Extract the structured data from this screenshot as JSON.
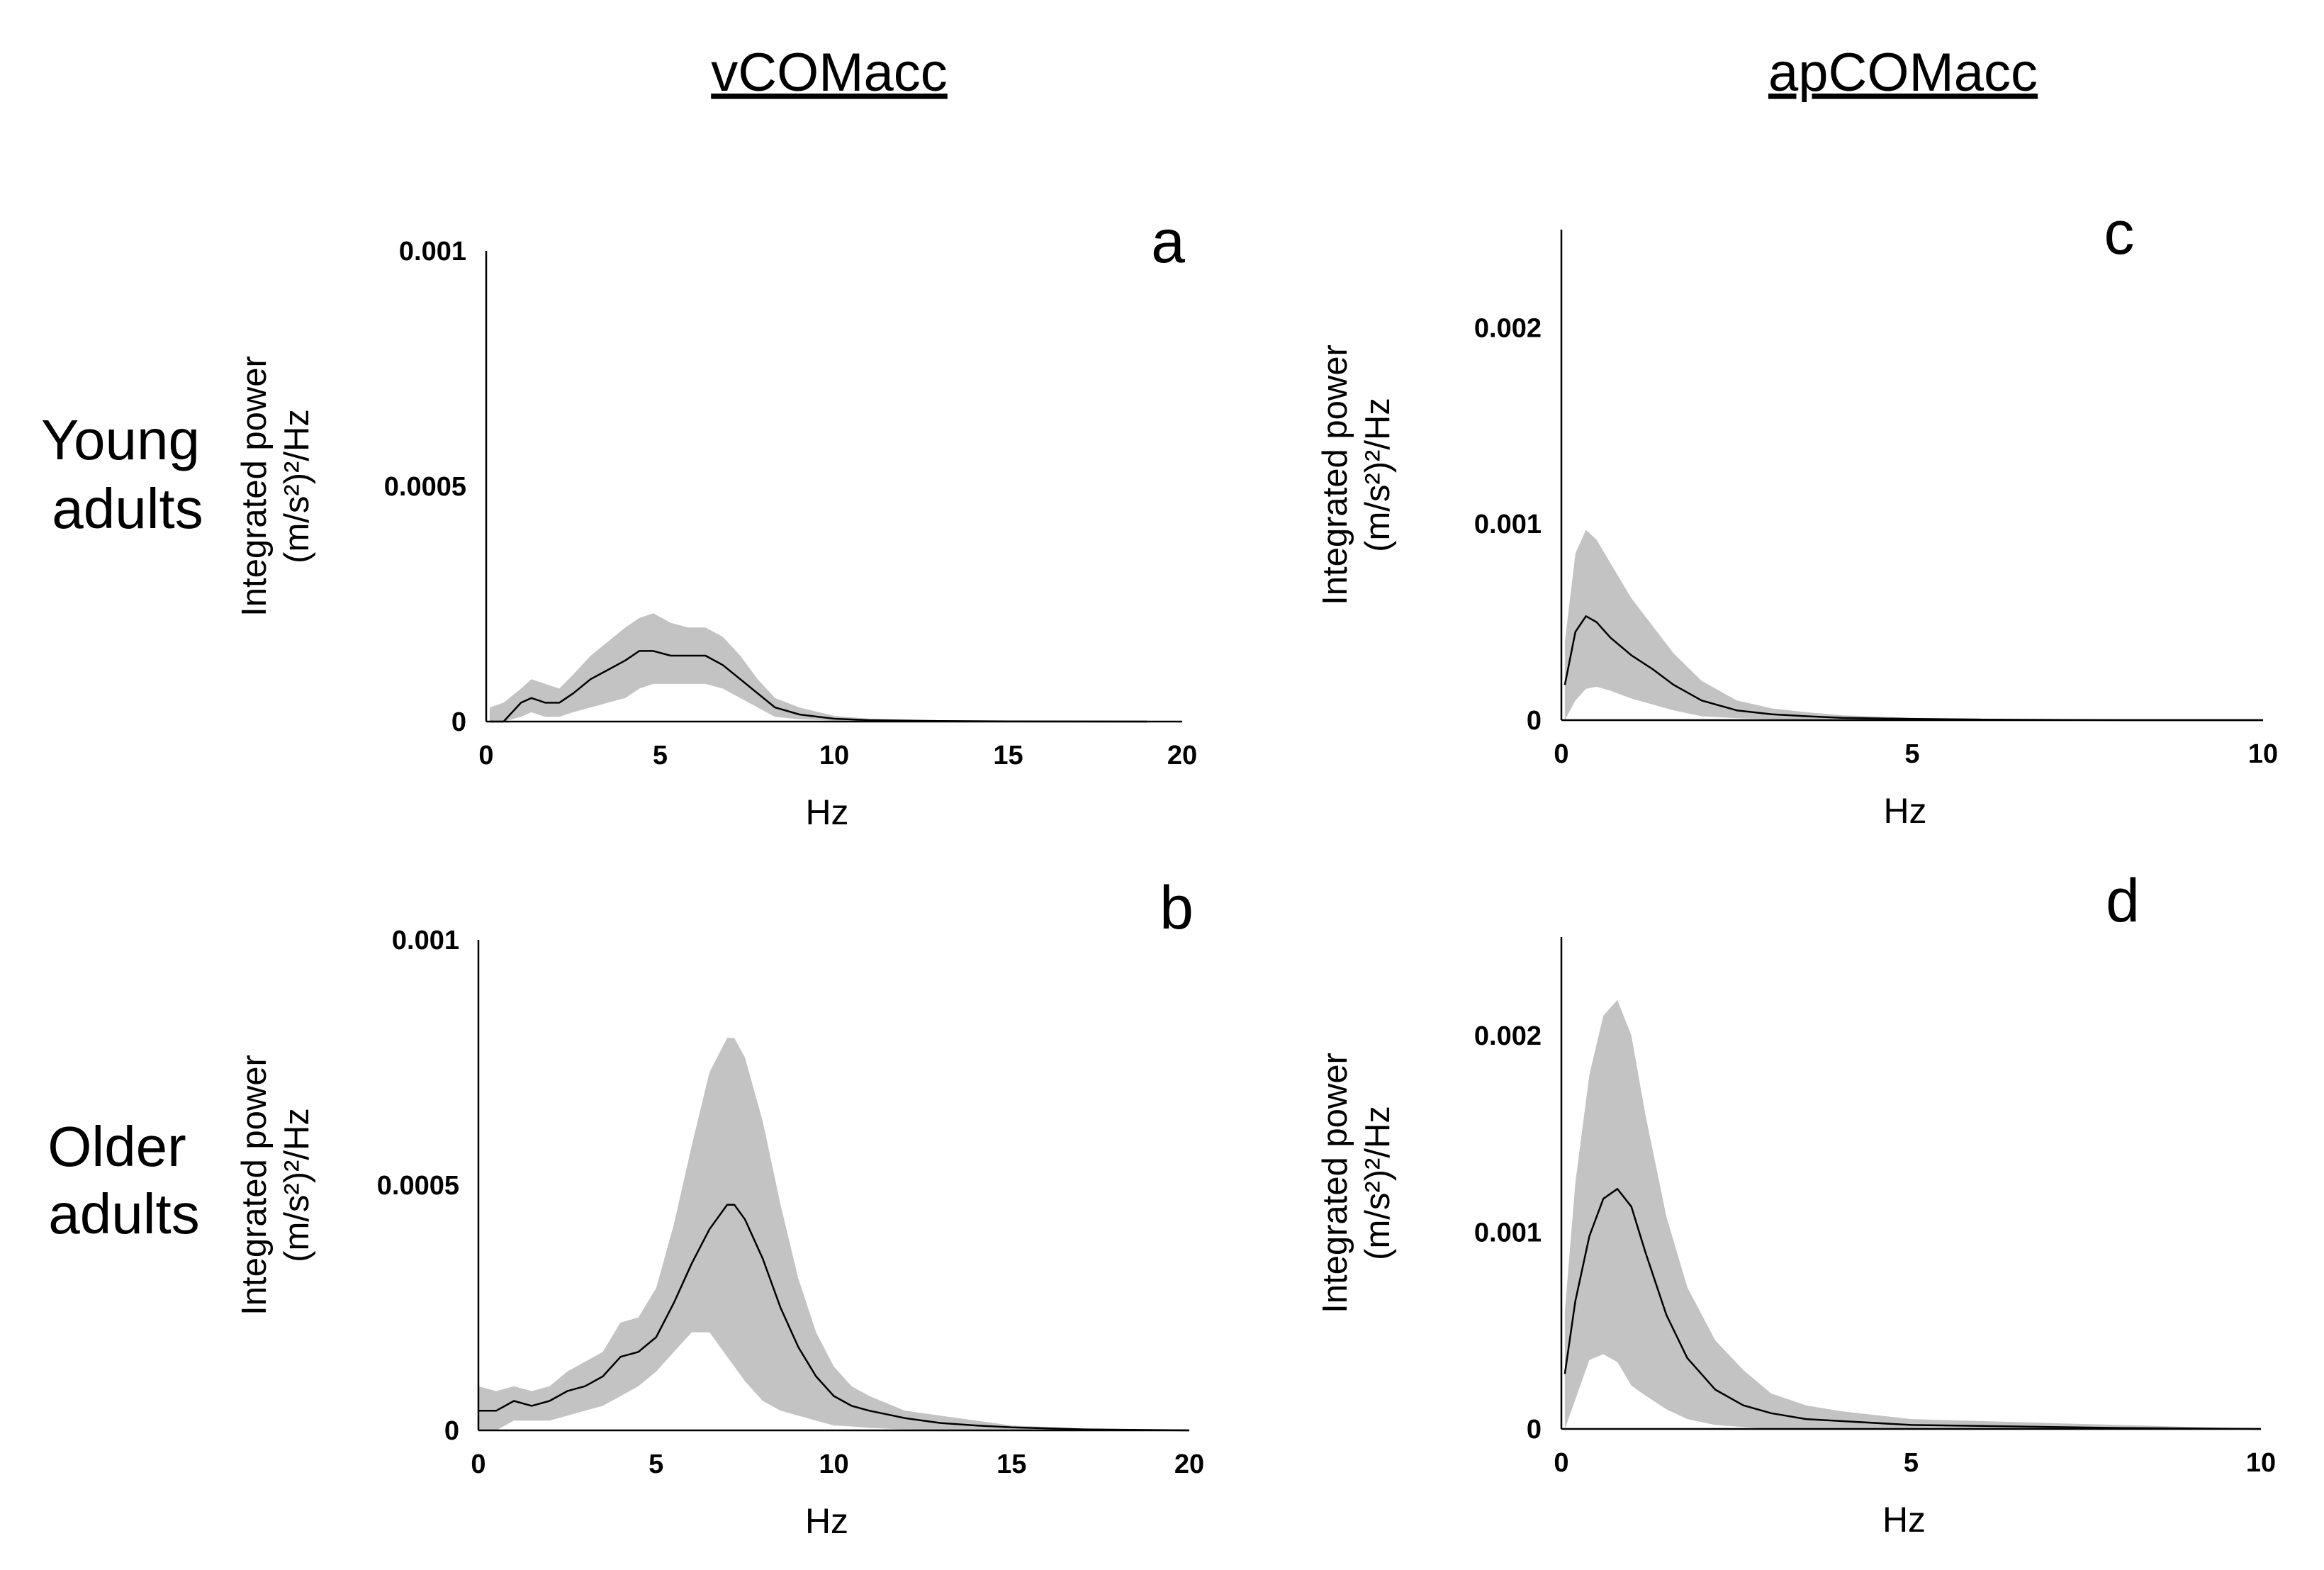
{
  "figure": {
    "column_titles": [
      "vCOMacc",
      "apCOMacc"
    ],
    "row_labels": [
      {
        "line1": "Young",
        "line2": "adults"
      },
      {
        "line1": "Older",
        "line2": "adults"
      }
    ]
  },
  "chart_data": [
    {
      "panel": "a",
      "type": "area",
      "title": "",
      "column_title": "vCOMacc",
      "group": "Young adults",
      "xlabel": "Hz",
      "ylabel_line1": "Integrated power",
      "ylabel_line2": "(m/s²)²/Hz",
      "xlim": [
        0,
        20
      ],
      "ylim": [
        0,
        0.001
      ],
      "xticks": [
        "0",
        "5",
        "10",
        "15",
        "20"
      ],
      "xtick_values": [
        0,
        5,
        10,
        15,
        20
      ],
      "yticks": [
        "0",
        "0.0005",
        "0.001"
      ],
      "ytick_values": [
        0,
        0.0005,
        0.001
      ],
      "x": [
        0.1,
        0.5,
        1.0,
        1.3,
        1.7,
        2.1,
        2.5,
        3.0,
        3.5,
        4.0,
        4.4,
        4.8,
        5.3,
        5.8,
        6.3,
        6.8,
        7.3,
        7.8,
        8.3,
        9.0,
        10.0,
        11.0,
        13.0,
        15.0,
        17.0,
        19.0
      ],
      "mean": [
        0.0,
        0.0,
        4e-05,
        5e-05,
        4e-05,
        4e-05,
        6e-05,
        9e-05,
        0.00011,
        0.00013,
        0.00015,
        0.00015,
        0.00014,
        0.00014,
        0.00014,
        0.00012,
        9e-05,
        6e-05,
        3e-05,
        1.5e-05,
        6e-06,
        3e-06,
        1e-06,
        5e-07,
        2e-07,
        0.0
      ],
      "upper": [
        3e-05,
        4e-05,
        7e-05,
        9e-05,
        8e-05,
        7e-05,
        0.0001,
        0.00014,
        0.00017,
        0.0002,
        0.00022,
        0.00023,
        0.00021,
        0.0002,
        0.0002,
        0.00018,
        0.00014,
        9e-05,
        5e-05,
        3e-05,
        1.2e-05,
        6e-06,
        3e-06,
        1.5e-06,
        8e-07,
        5e-07
      ],
      "lower": [
        0.0,
        0.0,
        1e-05,
        2e-05,
        1e-05,
        1e-05,
        2e-05,
        3e-05,
        4e-05,
        5e-05,
        7e-05,
        8e-05,
        8e-05,
        8e-05,
        8e-05,
        7e-05,
        5e-05,
        3e-05,
        1e-05,
        5e-06,
        2e-06,
        1e-06,
        0.0,
        0.0,
        0.0,
        0.0
      ]
    },
    {
      "panel": "b",
      "type": "area",
      "title": "",
      "column_title": "vCOMacc",
      "group": "Older adults",
      "xlabel": "Hz",
      "ylabel_line1": "Integrated power",
      "ylabel_line2": "(m/s²)²/Hz",
      "xlim": [
        0,
        20
      ],
      "ylim": [
        0,
        0.001
      ],
      "xticks": [
        "0",
        "5",
        "10",
        "15",
        "20"
      ],
      "xtick_values": [
        0,
        5,
        10,
        15,
        20
      ],
      "yticks": [
        "0",
        "0.0005",
        "0.001"
      ],
      "ytick_values": [
        0,
        0.0005,
        0.001
      ],
      "x": [
        0.0,
        0.5,
        1.0,
        1.5,
        2.0,
        2.5,
        3.0,
        3.5,
        4.0,
        4.5,
        5.0,
        5.5,
        6.0,
        6.5,
        7.0,
        7.2,
        7.5,
        8.0,
        8.5,
        9.0,
        9.5,
        10.0,
        10.5,
        11.0,
        12.0,
        13.0,
        14.0,
        15.0,
        17.0,
        20.0
      ],
      "mean": [
        4e-05,
        4e-05,
        6e-05,
        5e-05,
        6e-05,
        8e-05,
        9e-05,
        0.00011,
        0.00015,
        0.00016,
        0.00019,
        0.00026,
        0.00034,
        0.00041,
        0.00046,
        0.00046,
        0.00043,
        0.00035,
        0.00025,
        0.00017,
        0.00011,
        7e-05,
        5e-05,
        4e-05,
        2.5e-05,
        1.5e-05,
        1e-05,
        6e-06,
        2e-06,
        0.0
      ],
      "upper": [
        9e-05,
        8e-05,
        9e-05,
        8e-05,
        9e-05,
        0.00012,
        0.00014,
        0.00016,
        0.00022,
        0.00023,
        0.00029,
        0.00042,
        0.00058,
        0.00073,
        0.0008,
        0.0008,
        0.00076,
        0.00063,
        0.00046,
        0.00031,
        0.0002,
        0.00013,
        9e-05,
        7e-05,
        4e-05,
        3e-05,
        2e-05,
        1e-05,
        4e-06,
        0.0
      ],
      "lower": [
        0.0,
        0.0,
        2e-05,
        2e-05,
        2e-05,
        3e-05,
        4e-05,
        5e-05,
        7e-05,
        9e-05,
        0.00012,
        0.00016,
        0.0002,
        0.0002,
        0.00015,
        0.00013,
        0.0001,
        6e-05,
        4e-05,
        3e-05,
        2e-05,
        1e-05,
        8e-06,
        5e-06,
        2e-06,
        1e-06,
        0.0,
        0.0,
        0.0,
        0.0
      ]
    },
    {
      "panel": "c",
      "type": "area",
      "title": "",
      "column_title": "apCOMacc",
      "group": "Young adults",
      "xlabel": "Hz",
      "ylabel_line1": "Integrated power",
      "ylabel_line2": "(m/s²)²/Hz",
      "xlim": [
        0,
        10
      ],
      "ylim": [
        0,
        0.0025
      ],
      "xticks": [
        "0",
        "5",
        "10"
      ],
      "xtick_values": [
        0,
        5,
        10
      ],
      "yticks": [
        "0",
        "0.001",
        "0.002"
      ],
      "ytick_values": [
        0,
        0.001,
        0.002
      ],
      "x": [
        0.05,
        0.2,
        0.35,
        0.5,
        0.7,
        1.0,
        1.3,
        1.6,
        2.0,
        2.5,
        3.0,
        3.5,
        4.0,
        5.0,
        6.0,
        8.0,
        10.0
      ],
      "mean": [
        0.00018,
        0.00045,
        0.00053,
        0.0005,
        0.00042,
        0.00033,
        0.00026,
        0.00018,
        0.0001,
        5e-05,
        3e-05,
        2e-05,
        1.2e-05,
        6e-06,
        3e-06,
        0.0,
        0.0
      ],
      "upper": [
        0.0004,
        0.00085,
        0.00097,
        0.00092,
        0.0008,
        0.00062,
        0.00048,
        0.00034,
        0.0002,
        0.0001,
        6e-05,
        4e-05,
        2.5e-05,
        1.2e-05,
        6e-06,
        2e-06,
        0.0
      ],
      "lower": [
        0.0,
        0.0001,
        0.00016,
        0.00017,
        0.00015,
        0.00011,
        8e-05,
        5e-05,
        2e-05,
        1e-05,
        5e-06,
        0.0,
        0.0,
        0.0,
        0.0,
        0.0,
        0.0
      ]
    },
    {
      "panel": "d",
      "type": "area",
      "title": "",
      "column_title": "apCOMacc",
      "group": "Older adults",
      "xlabel": "Hz",
      "ylabel_line1": "Integrated power",
      "ylabel_line2": "(m/s²)²/Hz",
      "xlim": [
        0,
        10
      ],
      "ylim": [
        0,
        0.0025
      ],
      "xticks": [
        "0",
        "5",
        "10"
      ],
      "xtick_values": [
        0,
        5,
        10
      ],
      "yticks": [
        "0",
        "0.001",
        "0.002"
      ],
      "ytick_values": [
        0,
        0.001,
        0.002
      ],
      "x": [
        0.05,
        0.2,
        0.4,
        0.6,
        0.8,
        1.0,
        1.2,
        1.5,
        1.8,
        2.2,
        2.6,
        3.0,
        3.5,
        4.0,
        5.0,
        6.0,
        7.0,
        8.0,
        10.0
      ],
      "mean": [
        0.00028,
        0.00065,
        0.00098,
        0.00117,
        0.00122,
        0.00113,
        0.0009,
        0.00058,
        0.00036,
        0.0002,
        0.00012,
        8e-05,
        5e-05,
        4e-05,
        2e-05,
        1.5e-05,
        1e-05,
        5e-06,
        0.0
      ],
      "upper": [
        0.0006,
        0.00125,
        0.0018,
        0.0021,
        0.00218,
        0.002,
        0.0016,
        0.00108,
        0.00072,
        0.00045,
        0.0003,
        0.00018,
        0.00012,
        9e-05,
        5e-05,
        4e-05,
        3e-05,
        2e-05,
        0.0
      ],
      "lower": [
        0.0,
        0.00015,
        0.00035,
        0.00038,
        0.00034,
        0.00022,
        0.00017,
        0.0001,
        5e-05,
        2e-05,
        1e-05,
        0.0,
        0.0,
        0.0,
        0.0,
        0.0,
        0.0,
        0.0,
        0.0
      ]
    }
  ]
}
